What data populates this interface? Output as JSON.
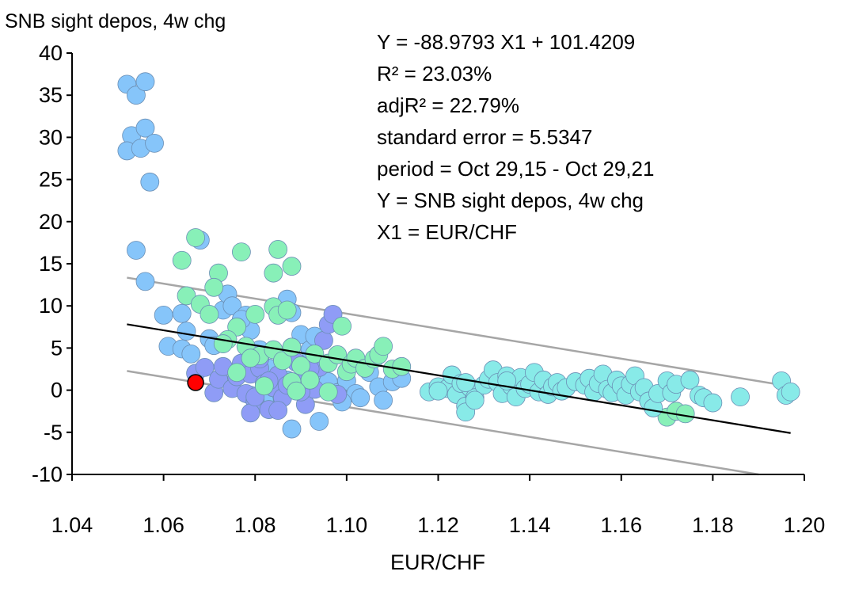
{
  "chart_data": {
    "type": "scatter",
    "title": "",
    "ylabel": "SNB sight depos, 4w chg",
    "xlabel": "EUR/CHF",
    "xlim": [
      1.04,
      1.2
    ],
    "ylim": [
      -10,
      40
    ],
    "xticks": [
      "1.04",
      "1.06",
      "1.08",
      "1.10",
      "1.12",
      "1.14",
      "1.16",
      "1.18",
      "1.20"
    ],
    "yticks": [
      "-10",
      "-5",
      "0",
      "5",
      "10",
      "15",
      "20",
      "25",
      "30",
      "35",
      "40"
    ],
    "grid": false,
    "annotations": [
      "Y = -88.9793 X1 + 101.4209",
      "R² = 23.03%",
      "adjR² = 22.79%",
      "standard error = 5.5347",
      "period = Oct 29,15 - Oct 29,21",
      "Y = SNB sight depos, 4w chg",
      "X1 = EUR/CHF"
    ],
    "regression": {
      "slope": -88.9793,
      "intercept": 101.4209,
      "std_error": 5.5347,
      "x_range": [
        1.052,
        1.197
      ],
      "color": "#000000"
    },
    "bands": {
      "offset": 5.5347,
      "color": "#a6a6a6"
    },
    "colors": {
      "sky": "#86c5fa",
      "periwinkle": "#8f9cf6",
      "mint": "#88f0b8",
      "cyan": "#88eae8",
      "latest": "#ff0000",
      "outline": "#6b8fb5"
    },
    "series": [
      {
        "name": "sky",
        "points": [
          [
            1.052,
            36.3
          ],
          [
            1.054,
            35.0
          ],
          [
            1.056,
            36.6
          ],
          [
            1.053,
            30.2
          ],
          [
            1.052,
            28.4
          ],
          [
            1.056,
            31.1
          ],
          [
            1.055,
            28.7
          ],
          [
            1.058,
            29.3
          ],
          [
            1.057,
            24.7
          ],
          [
            1.054,
            16.6
          ],
          [
            1.056,
            12.9
          ],
          [
            1.068,
            17.8
          ],
          [
            1.06,
            8.9
          ],
          [
            1.064,
            9.1
          ],
          [
            1.065,
            7.0
          ],
          [
            1.061,
            5.2
          ],
          [
            1.064,
            4.9
          ],
          [
            1.066,
            4.3
          ],
          [
            1.07,
            6.1
          ],
          [
            1.071,
            5.3
          ],
          [
            1.073,
            9.5
          ],
          [
            1.074,
            11.4
          ],
          [
            1.075,
            10.0
          ],
          [
            1.078,
            8.9
          ],
          [
            1.079,
            7.1
          ],
          [
            1.077,
            8.4
          ],
          [
            1.081,
            4.8
          ],
          [
            1.083,
            2.6
          ],
          [
            1.086,
            3.7
          ],
          [
            1.087,
            1.2
          ],
          [
            1.087,
            10.8
          ],
          [
            1.088,
            9.2
          ],
          [
            1.09,
            6.6
          ],
          [
            1.092,
            4.8
          ],
          [
            1.093,
            6.4
          ],
          [
            1.094,
            2.2
          ],
          [
            1.096,
            1.0
          ],
          [
            1.098,
            -0.3
          ],
          [
            1.1,
            1.1
          ],
          [
            1.102,
            -0.4
          ],
          [
            1.103,
            -0.9
          ],
          [
            1.105,
            2.1
          ],
          [
            1.107,
            0.4
          ],
          [
            1.108,
            -1.2
          ],
          [
            1.11,
            1.0
          ],
          [
            1.112,
            1.4
          ],
          [
            1.085,
            -0.8
          ],
          [
            1.088,
            -4.6
          ],
          [
            1.094,
            -3.7
          ],
          [
            1.079,
            -0.6
          ],
          [
            1.082,
            -1.2
          ],
          [
            1.099,
            -1.4
          ]
        ]
      },
      {
        "name": "periwinkle",
        "points": [
          [
            1.067,
            2.0
          ],
          [
            1.069,
            2.7
          ],
          [
            1.071,
            -0.3
          ],
          [
            1.072,
            1.3
          ],
          [
            1.073,
            2.8
          ],
          [
            1.075,
            0.2
          ],
          [
            1.076,
            1.6
          ],
          [
            1.077,
            3.2
          ],
          [
            1.078,
            -0.4
          ],
          [
            1.079,
            1.9
          ],
          [
            1.08,
            -1.3
          ],
          [
            1.081,
            2.6
          ],
          [
            1.082,
            0.8
          ],
          [
            1.083,
            -2.3
          ],
          [
            1.084,
            0.3
          ],
          [
            1.085,
            1.8
          ],
          [
            1.086,
            -0.9
          ],
          [
            1.087,
            0.6
          ],
          [
            1.089,
            3.3
          ],
          [
            1.09,
            0.8
          ],
          [
            1.091,
            -1.7
          ],
          [
            1.093,
            0.1
          ],
          [
            1.094,
            2.7
          ],
          [
            1.095,
            5.9
          ],
          [
            1.096,
            7.8
          ],
          [
            1.097,
            9.0
          ],
          [
            1.098,
            -0.5
          ],
          [
            1.079,
            -2.7
          ],
          [
            1.081,
            3.7
          ],
          [
            1.08,
            -0.8
          ],
          [
            1.085,
            -2.4
          ],
          [
            1.09,
            -0.2
          ],
          [
            1.083,
            1.1
          ],
          [
            1.092,
            2.5
          ]
        ]
      },
      {
        "name": "mint",
        "points": [
          [
            1.064,
            15.4
          ],
          [
            1.067,
            18.1
          ],
          [
            1.072,
            13.9
          ],
          [
            1.071,
            12.2
          ],
          [
            1.065,
            11.2
          ],
          [
            1.068,
            10.2
          ],
          [
            1.07,
            9.0
          ],
          [
            1.077,
            16.4
          ],
          [
            1.085,
            16.7
          ],
          [
            1.088,
            14.7
          ],
          [
            1.084,
            13.9
          ],
          [
            1.084,
            9.9
          ],
          [
            1.085,
            8.9
          ],
          [
            1.087,
            9.5
          ],
          [
            1.08,
            9.0
          ],
          [
            1.076,
            7.5
          ],
          [
            1.074,
            6.0
          ],
          [
            1.073,
            5.5
          ],
          [
            1.078,
            5.2
          ],
          [
            1.081,
            4.1
          ],
          [
            1.084,
            4.8
          ],
          [
            1.086,
            3.5
          ],
          [
            1.088,
            5.1
          ],
          [
            1.09,
            2.9
          ],
          [
            1.092,
            1.2
          ],
          [
            1.093,
            4.3
          ],
          [
            1.096,
            3.2
          ],
          [
            1.098,
            4.2
          ],
          [
            1.099,
            7.6
          ],
          [
            1.1,
            2.2
          ],
          [
            1.101,
            3.1
          ],
          [
            1.102,
            3.8
          ],
          [
            1.104,
            2.6
          ],
          [
            1.106,
            3.7
          ],
          [
            1.107,
            4.2
          ],
          [
            1.108,
            5.2
          ],
          [
            1.11,
            2.5
          ],
          [
            1.112,
            2.8
          ],
          [
            1.082,
            0.5
          ],
          [
            1.088,
            1.0
          ],
          [
            1.076,
            2.1
          ],
          [
            1.079,
            3.8
          ],
          [
            1.096,
            -0.2
          ],
          [
            1.089,
            -0.1
          ],
          [
            1.17,
            -3.2
          ],
          [
            1.172,
            -2.5
          ],
          [
            1.174,
            -2.8
          ]
        ]
      },
      {
        "name": "cyan",
        "points": [
          [
            1.118,
            -0.2
          ],
          [
            1.12,
            0.4
          ],
          [
            1.122,
            0.2
          ],
          [
            1.123,
            1.8
          ],
          [
            1.124,
            -0.5
          ],
          [
            1.125,
            0.8
          ],
          [
            1.126,
            -1.9
          ],
          [
            1.126,
            -2.6
          ],
          [
            1.127,
            0.3
          ],
          [
            1.128,
            -0.9
          ],
          [
            1.13,
            0.6
          ],
          [
            1.131,
            1.3
          ],
          [
            1.132,
            2.4
          ],
          [
            1.133,
            0.9
          ],
          [
            1.134,
            -0.4
          ],
          [
            1.135,
            1.7
          ],
          [
            1.136,
            0.5
          ],
          [
            1.137,
            -0.8
          ],
          [
            1.138,
            1.5
          ],
          [
            1.139,
            0.2
          ],
          [
            1.14,
            0.7
          ],
          [
            1.141,
            2.1
          ],
          [
            1.142,
            -0.2
          ],
          [
            1.143,
            1.2
          ],
          [
            1.144,
            -0.5
          ],
          [
            1.145,
            0.4
          ],
          [
            1.146,
            0.9
          ],
          [
            1.147,
            -0.1
          ],
          [
            1.148,
            0.3
          ],
          [
            1.15,
            1.0
          ],
          [
            1.152,
            0.6
          ],
          [
            1.153,
            1.4
          ],
          [
            1.154,
            -0.2
          ],
          [
            1.155,
            0.8
          ],
          [
            1.156,
            1.9
          ],
          [
            1.157,
            0.1
          ],
          [
            1.158,
            -0.3
          ],
          [
            1.159,
            1.2
          ],
          [
            1.16,
            0.5
          ],
          [
            1.161,
            -0.6
          ],
          [
            1.162,
            0.7
          ],
          [
            1.163,
            1.7
          ],
          [
            1.164,
            -0.2
          ],
          [
            1.165,
            0.3
          ],
          [
            1.166,
            -1.3
          ],
          [
            1.167,
            -2.1
          ],
          [
            1.168,
            -0.4
          ],
          [
            1.17,
            1.1
          ],
          [
            1.171,
            -0.3
          ],
          [
            1.172,
            0.7
          ],
          [
            1.175,
            1.2
          ],
          [
            1.177,
            -0.6
          ],
          [
            1.178,
            -0.9
          ],
          [
            1.18,
            -1.5
          ],
          [
            1.186,
            -0.8
          ],
          [
            1.195,
            1.1
          ],
          [
            1.196,
            -0.6
          ],
          [
            1.197,
            -0.2
          ],
          [
            1.12,
            -0.1
          ],
          [
            1.128,
            -1.2
          ],
          [
            1.126,
            0.9
          ],
          [
            1.135,
            1.1
          ]
        ]
      },
      {
        "name": "latest",
        "points": [
          [
            1.067,
            0.9
          ]
        ]
      }
    ]
  }
}
